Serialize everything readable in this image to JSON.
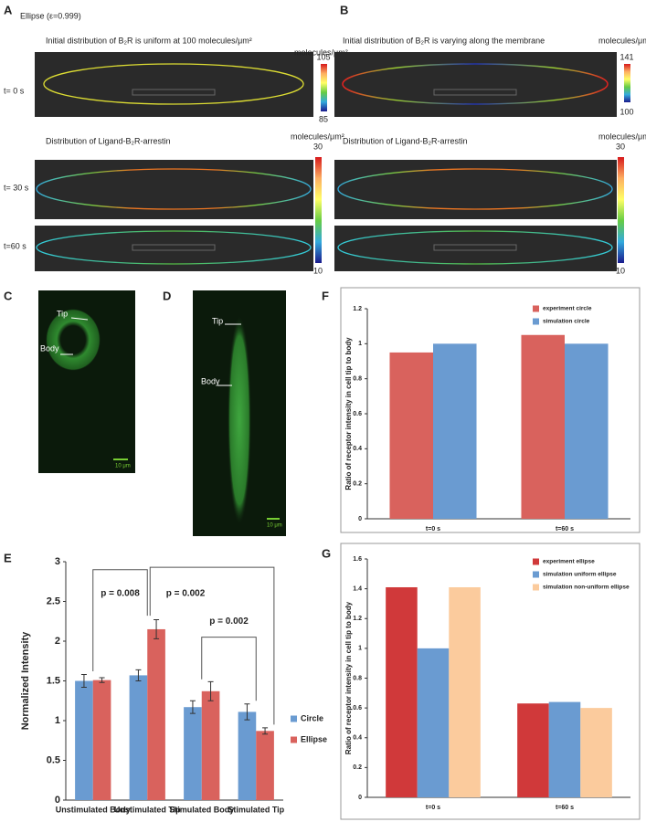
{
  "figure": {
    "panel_labels": [
      "A",
      "B",
      "C",
      "D",
      "E",
      "F",
      "G"
    ],
    "A": {
      "title": "Ellipse (ε=0.999)",
      "caption_initial": "Initial distribution of B₂R is uniform at 100 molecules/μm²",
      "caption_distribution": "Distribution of Ligand-B₂R-arrestin",
      "unit_initial": "molecules/μm²",
      "unit_distribution": "molecules/μm²",
      "time_labels": [
        "t= 0 s",
        "t= 30 s",
        "t=60 s"
      ],
      "colorbar_initial": [
        "105",
        "85"
      ],
      "colorbar_distribution": [
        "30",
        "10"
      ]
    },
    "B": {
      "caption_initial": "Initial distribution of B₂R is varying along the membrane",
      "caption_distribution": "Distribution of Ligand-B₂R-arrestin",
      "unit_initial": "molecules/μm²",
      "unit_distribution": "molecules/μm²",
      "colorbar_initial": [
        "141",
        "100"
      ],
      "colorbar_distribution": [
        "30",
        "10"
      ]
    },
    "C": {
      "tip": "Tip",
      "body": "Body",
      "scale": "10 μm"
    },
    "D": {
      "tip": "Tip",
      "body": "Body",
      "scale": "10 μm"
    }
  },
  "chart_data": [
    {
      "type": "bar",
      "y_label": "Normalized Intensity",
      "categories": [
        "Unstimulated Body",
        "Unstimulated Tip",
        "Stimulated Body",
        "Stimulated Tip"
      ],
      "series": [
        {
          "name": "Circle",
          "color": "#6a9bd1",
          "values": [
            1.5,
            1.57,
            1.17,
            1.11
          ],
          "errors": [
            0.08,
            0.07,
            0.08,
            0.1
          ]
        },
        {
          "name": "Ellipse",
          "color": "#d9625d",
          "values": [
            1.51,
            2.15,
            1.37,
            0.87
          ],
          "errors": [
            0.03,
            0.12,
            0.12,
            0.04
          ]
        }
      ],
      "ylim": [
        0,
        3
      ],
      "yticks": [
        0,
        0.5,
        1,
        1.5,
        2,
        2.5,
        3
      ],
      "annotations": [
        "p = 0.008",
        "p = 0.002",
        "p = 0.002"
      ]
    },
    {
      "type": "bar",
      "y_label": "Ratio of receptor intensity in cell tip to body",
      "categories": [
        "t=0 s",
        "t=60 s"
      ],
      "series": [
        {
          "name": "experiment circle",
          "color": "#d9625d",
          "values": [
            0.95,
            1.05
          ]
        },
        {
          "name": "simulation circle",
          "color": "#6a9bd1",
          "values": [
            1,
            1
          ]
        }
      ],
      "ylim": [
        0,
        1.2
      ],
      "yticks": [
        0,
        0.2,
        0.4,
        0.6,
        0.8,
        1,
        1.2
      ]
    },
    {
      "type": "bar",
      "y_label": "Ratio of receptor intensity in cell tip to body",
      "categories": [
        "t=0 s",
        "t=60 s"
      ],
      "series": [
        {
          "name": "experiment ellipse",
          "color": "#d0393a",
          "values": [
            1.41,
            0.63
          ]
        },
        {
          "name": "simulation uniform ellipse",
          "color": "#6a9bd1",
          "values": [
            1,
            0.64
          ]
        },
        {
          "name": "simulation non-uniform ellipse",
          "color": "#fbcb9d",
          "values": [
            1.41,
            0.6
          ]
        }
      ],
      "ylim": [
        0,
        1.6
      ],
      "yticks": [
        0,
        0.2,
        0.4,
        0.6,
        0.8,
        1,
        1.2,
        1.4,
        1.6
      ]
    }
  ]
}
